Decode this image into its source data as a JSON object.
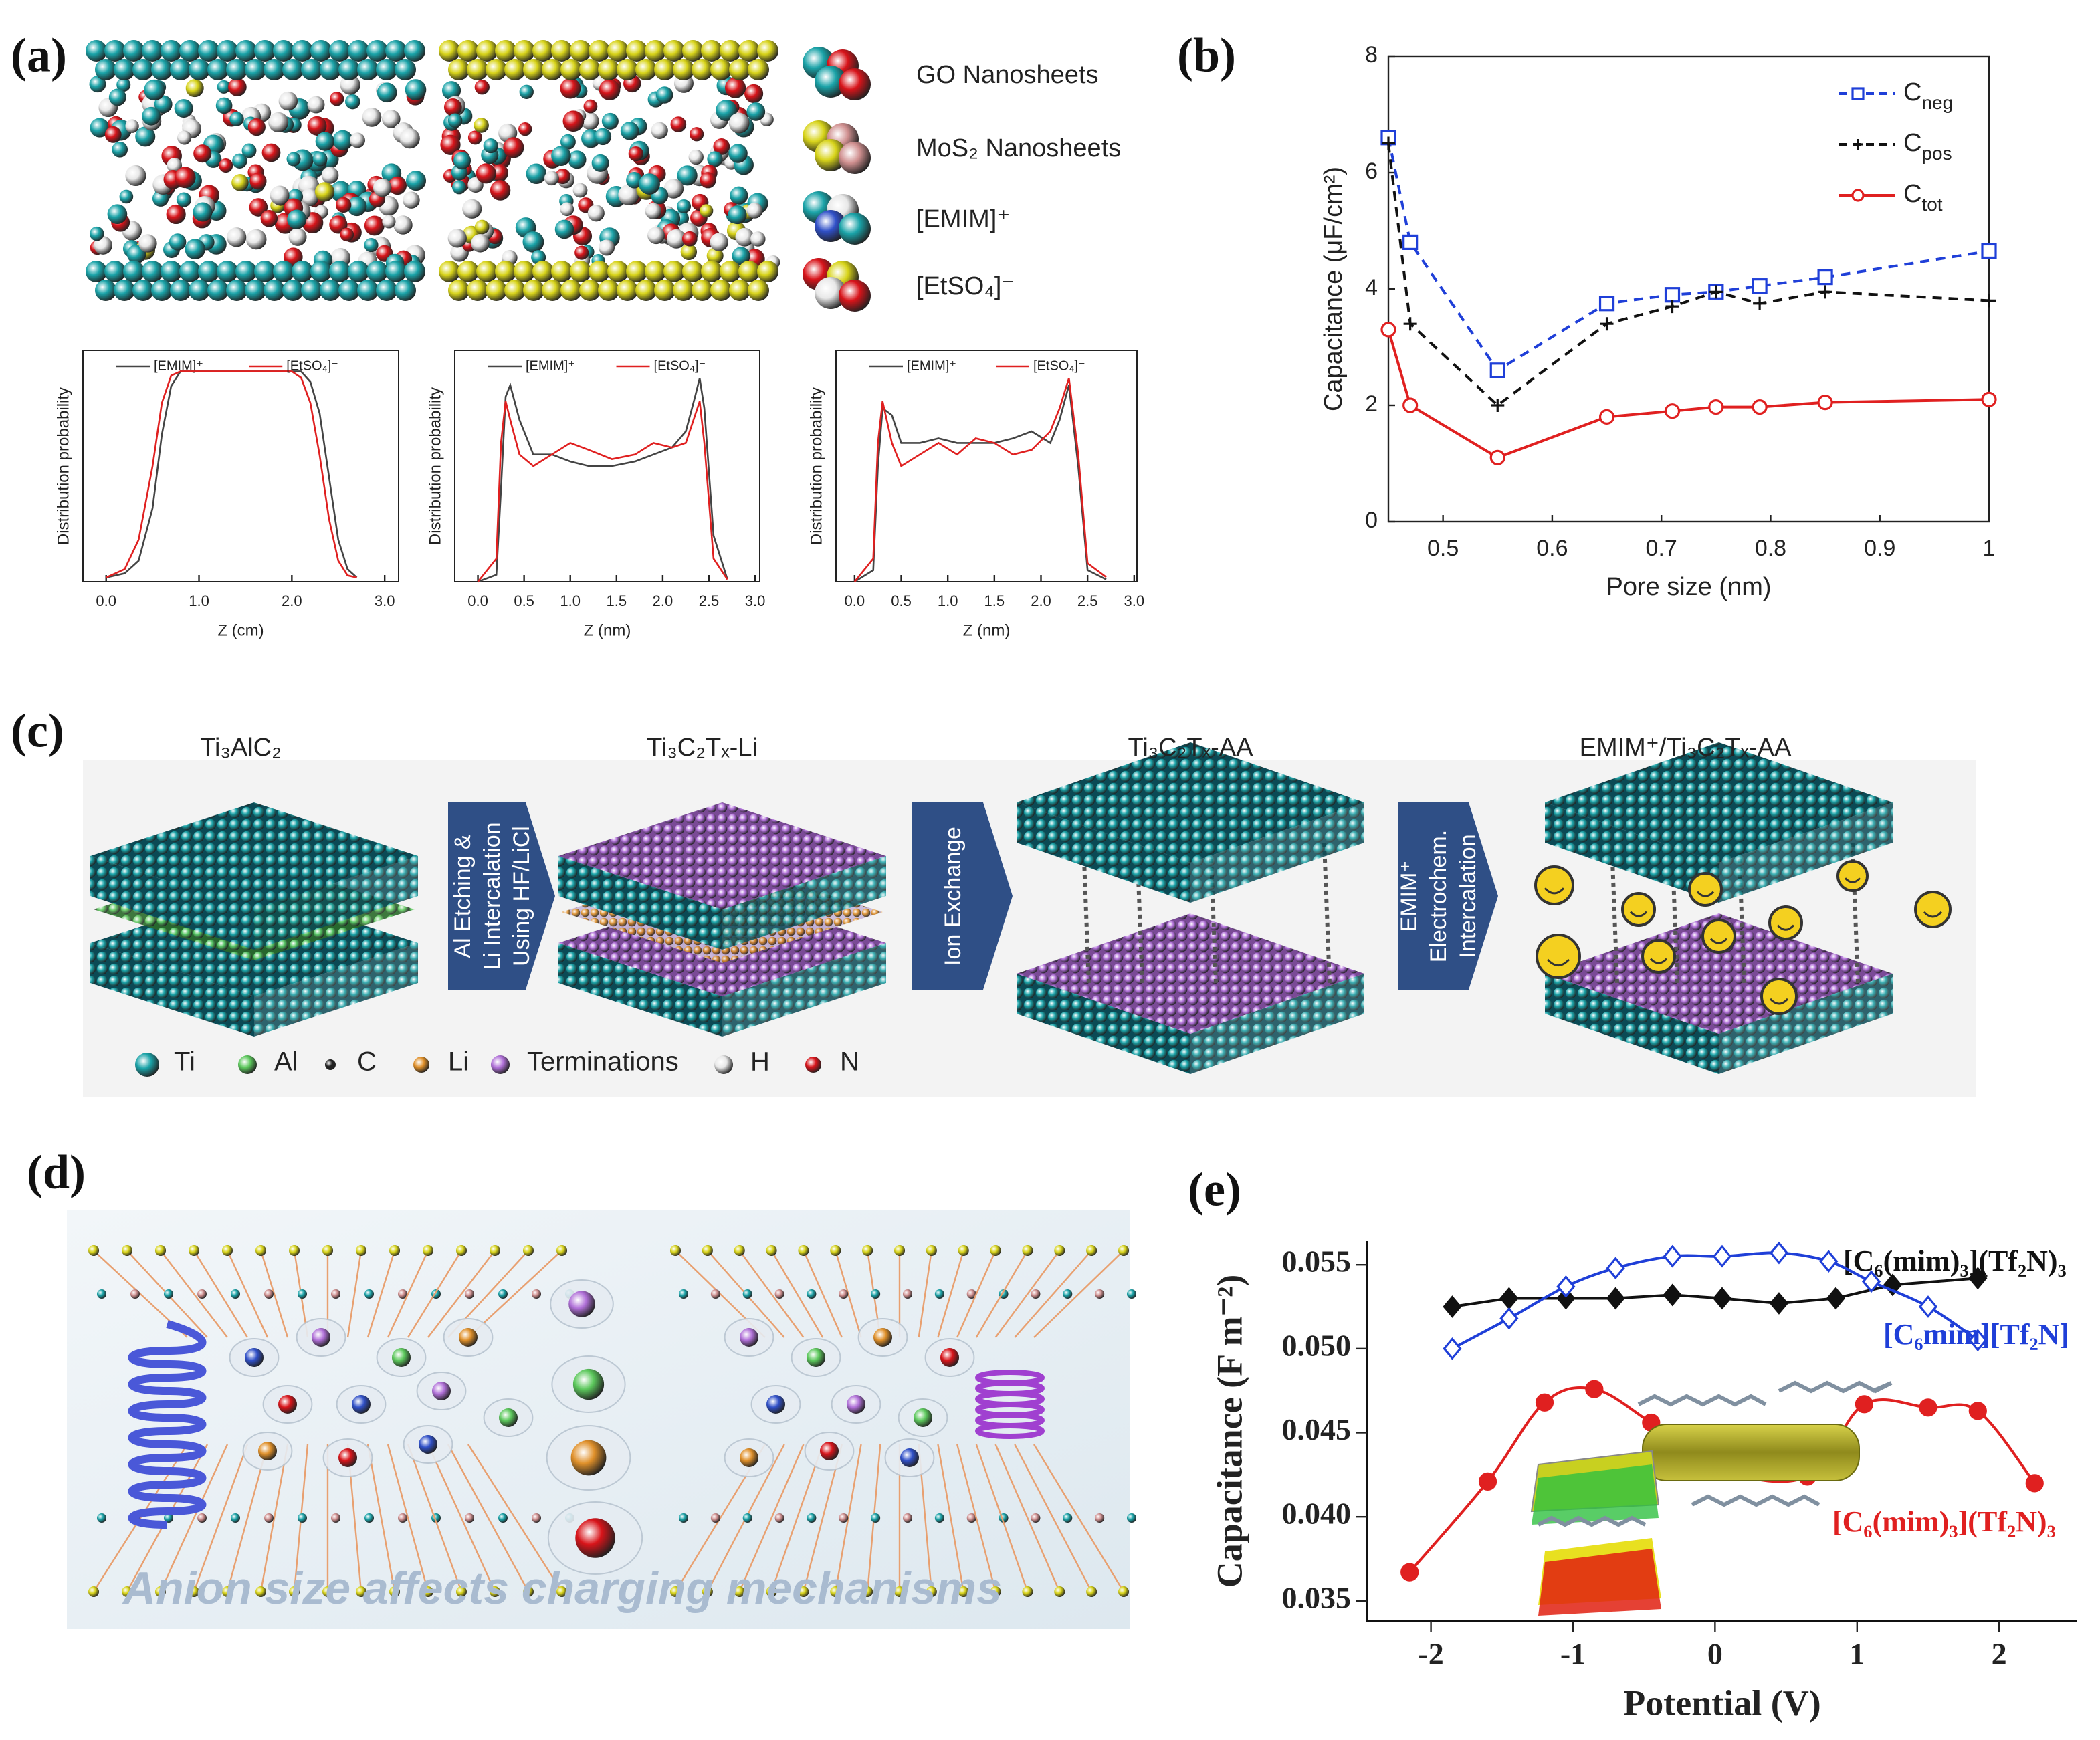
{
  "panel_labels": [
    "(a)",
    "(b)",
    "(c)",
    "(d)",
    "(e)"
  ],
  "panel_a": {
    "legend": [
      "GO Nanosheets",
      "MoS₂ Nanosheets",
      "[EMIM]⁺",
      "[EtSO₄]⁻"
    ]
  },
  "panel_c": {
    "stages": [
      "Ti₃AlC₂",
      "Ti₃C₂Tₓ-Li",
      "Ti₃C₂Tₓ-AA",
      "EMIM⁺/Ti₃C₂Tₓ-AA"
    ],
    "steps": [
      [
        "Al Etching &",
        "Li Intercalation",
        "Using HF/LiCl"
      ],
      [
        "Ion Exchange"
      ],
      [
        "EMIM⁺",
        "Electrochem.",
        "Intercalation"
      ]
    ],
    "legend": [
      "Ti",
      "Al",
      "C",
      "Li",
      "Terminations",
      "H",
      "N"
    ]
  },
  "panel_d": {
    "caption": "Anion size affects charging mechanisms"
  },
  "chart_data": [
    {
      "type": "line",
      "xlabel": "Z (cm)",
      "ylabel": "Distribution probability",
      "xlim": [
        -0.25,
        3.15
      ],
      "ylim": [
        0,
        1.1
      ],
      "xticks": [
        {
          "value": 0,
          "label": "0.0"
        },
        {
          "value": 1,
          "label": "1.0"
        },
        {
          "value": 2,
          "label": "2.0"
        },
        {
          "value": 3,
          "label": "3.0"
        }
      ],
      "legend": "upper center",
      "x": [
        0,
        0.2,
        0.35,
        0.5,
        0.6,
        0.7,
        0.8,
        1.0,
        1.5,
        2.0,
        2.1,
        2.2,
        2.3,
        2.4,
        2.5,
        2.6,
        2.7
      ],
      "series": [
        {
          "name": "[EMIM]⁺",
          "color": "#444444",
          "values": [
            0.02,
            0.04,
            0.1,
            0.35,
            0.7,
            0.93,
            1.0,
            1.0,
            1.0,
            1.0,
            1.0,
            0.95,
            0.8,
            0.5,
            0.2,
            0.06,
            0.02
          ]
        },
        {
          "name": "[EtSO₄]⁻",
          "color": "#e02020",
          "values": [
            0.02,
            0.06,
            0.2,
            0.55,
            0.85,
            0.98,
            1.0,
            1.0,
            1.0,
            1.0,
            0.97,
            0.85,
            0.6,
            0.3,
            0.1,
            0.03,
            0.02
          ]
        }
      ]
    },
    {
      "type": "line",
      "xlabel": "Z (nm)",
      "ylabel": "Distribution probability",
      "xlim": [
        -0.25,
        3.05
      ],
      "ylim": [
        0,
        1.0
      ],
      "xticks": [
        {
          "value": 0,
          "label": "0.0"
        },
        0.5,
        {
          "value": 1,
          "label": "1.0"
        },
        1.5,
        {
          "value": 2,
          "label": "2.0"
        },
        2.5,
        {
          "value": 3,
          "label": "3.0"
        }
      ],
      "legend": "upper center",
      "x": [
        0,
        0.2,
        0.25,
        0.3,
        0.35,
        0.45,
        0.6,
        0.8,
        1.0,
        1.2,
        1.45,
        1.7,
        1.9,
        2.1,
        2.25,
        2.35,
        2.4,
        2.45,
        2.55,
        2.7
      ],
      "series": [
        {
          "name": "[EMIM]⁺",
          "color": "#444444",
          "values": [
            0,
            0.03,
            0.4,
            0.8,
            0.85,
            0.7,
            0.55,
            0.55,
            0.52,
            0.5,
            0.5,
            0.52,
            0.55,
            0.58,
            0.65,
            0.8,
            0.88,
            0.75,
            0.2,
            0.01
          ]
        },
        {
          "name": "[EtSO₄]⁻",
          "color": "#e02020",
          "values": [
            0,
            0.1,
            0.6,
            0.78,
            0.7,
            0.55,
            0.5,
            0.55,
            0.6,
            0.57,
            0.53,
            0.55,
            0.6,
            0.58,
            0.6,
            0.72,
            0.78,
            0.6,
            0.1,
            0.01
          ]
        }
      ]
    },
    {
      "type": "line",
      "xlabel": "Z (nm)",
      "ylabel": "Distribution probability",
      "xlim": [
        -0.2,
        3.03
      ],
      "ylim": [
        0,
        1.0
      ],
      "xticks": [
        {
          "value": 0,
          "label": "0.0"
        },
        0.5,
        {
          "value": 1,
          "label": "1.0"
        },
        1.5,
        {
          "value": 2,
          "label": "2.0"
        },
        2.5,
        {
          "value": 3,
          "label": "3.0"
        }
      ],
      "legend": "upper center",
      "x": [
        0,
        0.2,
        0.25,
        0.3,
        0.4,
        0.5,
        0.7,
        0.9,
        1.1,
        1.3,
        1.5,
        1.7,
        1.9,
        2.1,
        2.2,
        2.3,
        2.4,
        2.5,
        2.7
      ],
      "series": [
        {
          "name": "[EMIM]⁺",
          "color": "#444444",
          "values": [
            0,
            0.05,
            0.5,
            0.75,
            0.72,
            0.6,
            0.6,
            0.62,
            0.6,
            0.6,
            0.6,
            0.62,
            0.65,
            0.6,
            0.7,
            0.85,
            0.5,
            0.05,
            0.01
          ]
        },
        {
          "name": "[EtSO₄]⁻",
          "color": "#e02020",
          "values": [
            0,
            0.1,
            0.6,
            0.78,
            0.6,
            0.5,
            0.55,
            0.6,
            0.55,
            0.62,
            0.6,
            0.55,
            0.57,
            0.65,
            0.75,
            0.88,
            0.55,
            0.08,
            0.02
          ]
        }
      ]
    },
    {
      "type": "line",
      "xlabel": "Pore size (nm)",
      "ylabel": "Capacitance (μF/cm²)",
      "xlim": [
        0.45,
        1
      ],
      "ylim": [
        0,
        8
      ],
      "xticks": [
        0.5,
        0.6,
        0.7,
        0.8,
        0.9,
        1
      ],
      "yticks": [
        0,
        2,
        4,
        6,
        8
      ],
      "legend": "upper right",
      "x": [
        0.45,
        0.47,
        0.55,
        0.65,
        0.71,
        0.75,
        0.79,
        0.85,
        1
      ],
      "series": [
        {
          "name": "Cneg",
          "color": "#1f3fd8",
          "linestyle": "dashed",
          "marker": "square",
          "marker_filled": false,
          "values": [
            6.6,
            4.8,
            2.6,
            3.75,
            3.9,
            3.95,
            4.05,
            4.2,
            4.65
          ]
        },
        {
          "name": "Cpos",
          "color": "#111111",
          "linestyle": "dashed",
          "marker": "plus",
          "marker_filled": true,
          "values": [
            6.5,
            3.4,
            2.0,
            3.4,
            3.7,
            3.95,
            3.75,
            3.95,
            3.8
          ]
        },
        {
          "name": "Ctot",
          "color": "#e02020",
          "linestyle": "solid",
          "marker": "circle",
          "marker_filled": false,
          "values": [
            3.3,
            2.0,
            1.1,
            1.8,
            1.9,
            1.97,
            1.97,
            2.05,
            2.1
          ]
        }
      ]
    },
    {
      "type": "line",
      "xlabel": "Potential (V)",
      "ylabel": "Capacitance (F m⁻²)",
      "xlim": [
        -2.45,
        2.55
      ],
      "ylim": [
        0.0338,
        0.0564
      ],
      "xticks": [
        -2,
        -1,
        0,
        1,
        2
      ],
      "yticks": [
        0.035,
        {
          "value": 0.04,
          "label": "0.040"
        },
        0.045,
        {
          "value": 0.05,
          "label": "0.050"
        },
        0.055
      ],
      "series": [
        {
          "name": "[C₆(mim)₃](Tf₂N)₃",
          "color": "#111111",
          "linestyle": "solid",
          "marker": "diamond",
          "marker_filled": true,
          "smooth": false,
          "x": [
            -1.85,
            -1.45,
            -1.05,
            -0.7,
            -0.3,
            0.05,
            0.45,
            0.85,
            1.25,
            1.85
          ],
          "values": [
            0.0525,
            0.053,
            0.053,
            0.053,
            0.0532,
            0.053,
            0.0527,
            0.053,
            0.0538,
            0.0542
          ]
        },
        {
          "name": "[C₆mim][Tf₂N]",
          "color": "#1f3fd8",
          "linestyle": "solid",
          "marker": "diamond",
          "marker_filled": false,
          "smooth": true,
          "x": [
            -1.85,
            -1.45,
            -1.05,
            -0.7,
            -0.3,
            0.05,
            0.45,
            0.8,
            1.1,
            1.5,
            1.85
          ],
          "values": [
            0.05,
            0.0518,
            0.0537,
            0.0548,
            0.0555,
            0.0555,
            0.0557,
            0.0552,
            0.054,
            0.0525,
            0.0505
          ]
        },
        {
          "name": "[C₆(mim)₃](Tf₂N)₃",
          "color": "#e02020",
          "linestyle": "solid",
          "marker": "circle",
          "marker_filled": true,
          "smooth": true,
          "x": [
            -2.15,
            -1.6,
            -1.2,
            -0.85,
            -0.45,
            0.05,
            0.65,
            1.05,
            1.5,
            1.85,
            2.25
          ],
          "values": [
            0.0367,
            0.0421,
            0.0468,
            0.0476,
            0.0456,
            0.0428,
            0.0424,
            0.0467,
            0.0465,
            0.0463,
            0.042
          ]
        }
      ]
    }
  ]
}
